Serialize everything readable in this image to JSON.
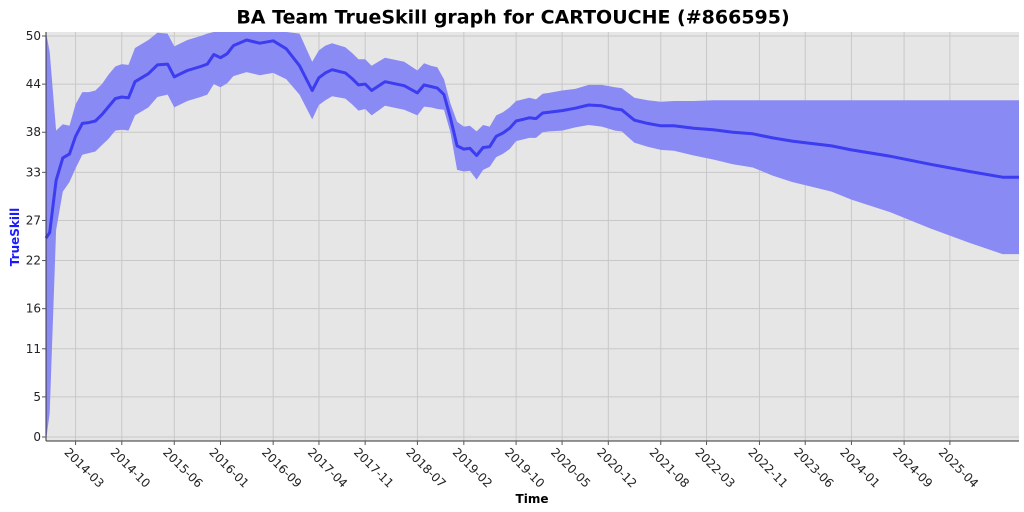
{
  "colors": {
    "background": "#ffffff",
    "plot_background": "#e6e6e6",
    "grid": "#c8c8c8",
    "band": "#8a8af5",
    "line": "#3c3cf0",
    "ylabel": "#1a1aff"
  },
  "chart_data": {
    "type": "area",
    "title": "BA Team TrueSkill graph for CARTOUCHE (#866595)",
    "xlabel": "Time",
    "ylabel": "TrueSkill",
    "grid": true,
    "legend": "none",
    "xlim": [
      "2013-10-15",
      "2026-02-15"
    ],
    "ylim": [
      -0.5,
      50.5
    ],
    "x_ticks": [
      "2014-03",
      "2014-10",
      "2015-06",
      "2016-01",
      "2016-09",
      "2017-04",
      "2017-11",
      "2018-07",
      "2019-02",
      "2019-10",
      "2020-05",
      "2020-12",
      "2021-08",
      "2022-03",
      "2022-11",
      "2023-06",
      "2024-01",
      "2024-09",
      "2025-04"
    ],
    "y_ticks": [
      0,
      5,
      11,
      16,
      22,
      27,
      33,
      38,
      44,
      50
    ],
    "series": [
      {
        "name": "TrueSkill",
        "x": [
          "2013-10-15",
          "2013-11-01",
          "2013-12-01",
          "2014-01-01",
          "2014-02-01",
          "2014-03-01",
          "2014-04-01",
          "2014-05-01",
          "2014-06-01",
          "2014-07-01",
          "2014-08-01",
          "2014-09-01",
          "2014-10-01",
          "2014-11-01",
          "2014-12-01",
          "2015-01-01",
          "2015-02-01",
          "2015-03-15",
          "2015-05-01",
          "2015-06-01",
          "2015-07-01",
          "2015-08-01",
          "2015-10-01",
          "2015-11-01",
          "2015-12-01",
          "2016-01-01",
          "2016-02-01",
          "2016-03-01",
          "2016-05-01",
          "2016-07-01",
          "2016-09-01",
          "2016-11-01",
          "2017-01-01",
          "2017-03-01",
          "2017-04-01",
          "2017-05-01",
          "2017-06-01",
          "2017-08-01",
          "2017-09-01",
          "2017-10-01",
          "2017-11-01",
          "2017-12-01",
          "2018-02-01",
          "2018-05-01",
          "2018-07-01",
          "2018-08-01",
          "2018-09-01",
          "2018-10-01",
          "2018-11-01",
          "2018-12-01",
          "2019-01-01",
          "2019-02-01",
          "2019-03-01",
          "2019-04-01",
          "2019-05-01",
          "2019-06-01",
          "2019-07-01",
          "2019-08-01",
          "2019-09-01",
          "2019-10-01",
          "2019-11-01",
          "2019-12-01",
          "2020-01-01",
          "2020-02-01",
          "2020-03-01",
          "2020-05-01",
          "2020-07-01",
          "2020-09-01",
          "2020-11-01",
          "2021-01-01",
          "2021-02-01",
          "2021-04-01",
          "2021-06-01",
          "2021-08-01",
          "2021-10-01",
          "2022-01-01",
          "2022-04-01",
          "2022-07-01",
          "2022-10-01",
          "2023-01-01",
          "2023-04-01",
          "2023-07-01",
          "2023-10-01",
          "2024-01-01",
          "2024-07-01",
          "2025-01-01",
          "2025-07-01",
          "2025-12-01",
          "2026-02-15"
        ],
        "y": [
          24.8,
          25.5,
          32.0,
          34.8,
          35.3,
          37.5,
          39.1,
          39.2,
          39.4,
          40.2,
          41.2,
          42.2,
          42.4,
          42.3,
          44.3,
          44.8,
          45.3,
          46.4,
          46.5,
          44.9,
          45.3,
          45.7,
          46.2,
          46.5,
          47.7,
          47.3,
          47.8,
          48.8,
          49.5,
          49.1,
          49.4,
          48.4,
          46.3,
          43.2,
          44.8,
          45.4,
          45.8,
          45.4,
          44.7,
          43.9,
          44.0,
          43.2,
          44.3,
          43.8,
          42.9,
          43.9,
          43.7,
          43.5,
          42.7,
          39.8,
          36.3,
          35.9,
          36.0,
          35.1,
          36.1,
          36.2,
          37.5,
          37.9,
          38.5,
          39.4,
          39.6,
          39.8,
          39.7,
          40.4,
          40.5,
          40.7,
          41.0,
          41.4,
          41.3,
          40.9,
          40.8,
          39.5,
          39.1,
          38.8,
          38.8,
          38.5,
          38.3,
          38.0,
          37.8,
          37.3,
          36.9,
          36.6,
          36.3,
          35.8,
          35.0,
          34.0,
          33.1,
          32.4,
          32.4
        ],
        "upper": [
          50.5,
          48.0,
          38.2,
          39.0,
          38.8,
          41.5,
          43.0,
          43.0,
          43.2,
          44.0,
          45.2,
          46.2,
          46.5,
          46.4,
          48.5,
          49.0,
          49.5,
          50.4,
          50.3,
          48.7,
          49.1,
          49.5,
          50.0,
          50.3,
          50.5,
          50.5,
          50.5,
          50.5,
          50.5,
          50.5,
          50.5,
          50.5,
          50.3,
          46.8,
          48.2,
          48.8,
          49.1,
          48.6,
          47.9,
          47.1,
          47.1,
          46.3,
          47.3,
          46.8,
          45.7,
          46.6,
          46.3,
          46.1,
          44.6,
          41.6,
          39.3,
          38.7,
          38.8,
          38.1,
          38.9,
          38.7,
          40.1,
          40.5,
          41.1,
          41.9,
          42.1,
          42.3,
          42.1,
          42.8,
          42.9,
          43.2,
          43.4,
          43.9,
          43.9,
          43.6,
          43.5,
          42.3,
          42.0,
          41.8,
          41.9,
          41.9,
          42.0,
          42.0,
          42.0,
          42.0,
          42.0,
          42.0,
          42.0,
          42.0,
          42.0,
          42.0,
          42.0,
          42.0,
          42.0
        ],
        "lower": [
          -0.5,
          3.0,
          25.8,
          30.6,
          31.8,
          33.5,
          35.2,
          35.4,
          35.6,
          36.4,
          37.2,
          38.2,
          38.3,
          38.2,
          40.1,
          40.6,
          41.1,
          42.4,
          42.7,
          41.1,
          41.5,
          41.9,
          42.4,
          42.7,
          44.0,
          43.6,
          44.1,
          45.0,
          45.5,
          45.1,
          45.4,
          44.6,
          42.7,
          39.6,
          41.4,
          42.0,
          42.5,
          42.2,
          41.5,
          40.7,
          40.9,
          40.1,
          41.3,
          40.8,
          40.1,
          41.2,
          41.1,
          40.9,
          40.8,
          38.0,
          33.3,
          33.1,
          33.2,
          32.1,
          33.3,
          33.7,
          34.9,
          35.3,
          35.9,
          36.9,
          37.1,
          37.3,
          37.3,
          38.0,
          38.1,
          38.2,
          38.6,
          38.9,
          38.7,
          38.2,
          38.1,
          36.7,
          36.2,
          35.8,
          35.7,
          35.1,
          34.6,
          34.0,
          33.6,
          32.6,
          31.8,
          31.2,
          30.6,
          29.6,
          28.0,
          26.0,
          24.2,
          22.8,
          22.8
        ]
      }
    ]
  }
}
